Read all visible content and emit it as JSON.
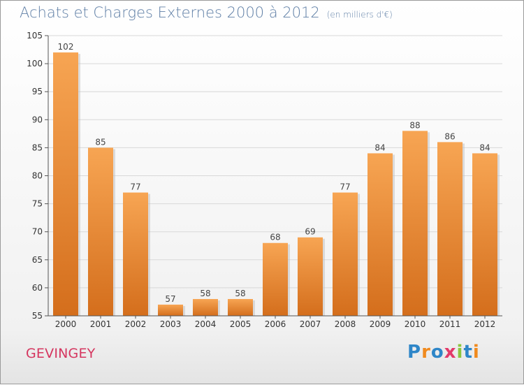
{
  "header": {
    "title": "Achats et Charges Externes 2000 à 2012",
    "unit": "(en milliers d'€)"
  },
  "footer": {
    "location": "GEVINGEY",
    "logo": {
      "text": "Proxiti",
      "letters": [
        {
          "ch": "P",
          "color": "#2e86c8"
        },
        {
          "ch": "r",
          "color": "#f08a1e"
        },
        {
          "ch": "o",
          "color": "#2e86c8"
        },
        {
          "ch": "x",
          "color": "#e23a6a"
        },
        {
          "ch": "i",
          "color": "#8cc63e"
        },
        {
          "ch": "t",
          "color": "#2e86c8"
        },
        {
          "ch": "i",
          "color": "#f08a1e"
        }
      ]
    }
  },
  "chart_data": {
    "type": "bar",
    "categories": [
      "2000",
      "2001",
      "2002",
      "2003",
      "2004",
      "2005",
      "2006",
      "2007",
      "2008",
      "2009",
      "2010",
      "2011",
      "2012"
    ],
    "values": [
      102,
      85,
      77,
      57,
      58,
      58,
      68,
      69,
      77,
      84,
      88,
      86,
      84
    ],
    "data_labels": [
      "102",
      "85",
      "77",
      "57",
      "58",
      "58",
      "68",
      "69",
      "77",
      "84",
      "88",
      "86",
      "84"
    ],
    "ylim": [
      55,
      105
    ],
    "yticks": [
      55,
      60,
      65,
      70,
      75,
      80,
      85,
      90,
      95,
      100,
      105
    ],
    "grid": true,
    "colors": {
      "bar_light": "#f7a553",
      "bar_dark": "#d46e1c",
      "grid": "#d8d8d8",
      "axis": "#555555",
      "tick_text": "#333333",
      "label_text": "#444444"
    }
  }
}
